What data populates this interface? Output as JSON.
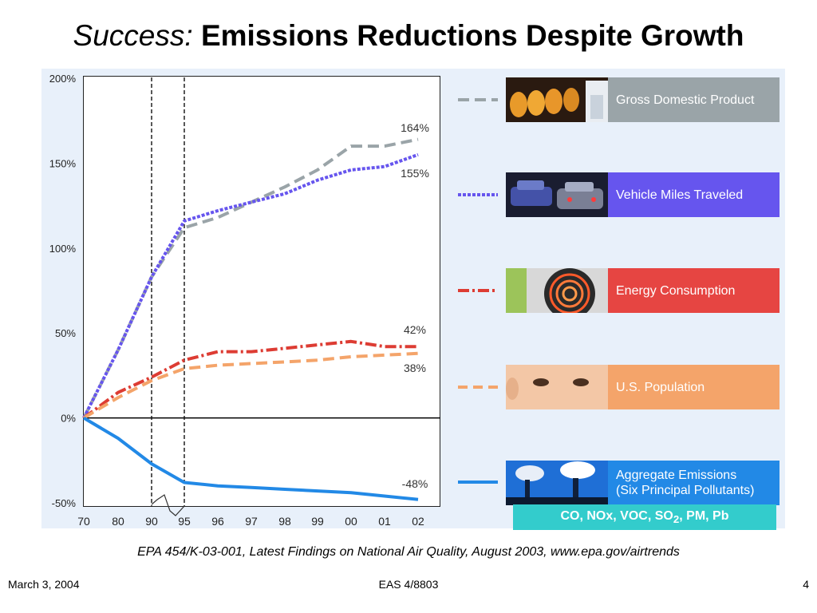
{
  "title": {
    "italic": "Success:",
    "bold": "Emissions Reductions Despite Growth"
  },
  "chart_data": {
    "type": "line",
    "x": [
      "70",
      "80",
      "90",
      "95",
      "96",
      "97",
      "98",
      "99",
      "00",
      "01",
      "02"
    ],
    "yticks": [
      "200%",
      "150%",
      "100%",
      "50%",
      "0%",
      "-50%"
    ],
    "ylim": [
      -50,
      200
    ],
    "reference_lines": [
      "90",
      "95"
    ],
    "series": [
      {
        "name": "Gross Domestic Product",
        "color": "#9aa4a8",
        "style": "dashed",
        "values": [
          0,
          40,
          83,
          112,
          118,
          127,
          136,
          146,
          160,
          160,
          164
        ],
        "end_label": "164%"
      },
      {
        "name": "Vehicle Miles Traveled",
        "color": "#6655ee",
        "style": "dotted",
        "values": [
          0,
          40,
          83,
          116,
          122,
          127,
          132,
          140,
          146,
          148,
          155
        ],
        "end_label": "155%"
      },
      {
        "name": "Energy Consumption",
        "color": "#dd3c33",
        "style": "dashdot",
        "values": [
          0,
          15,
          24,
          34,
          39,
          39,
          41,
          43,
          45,
          42,
          42
        ],
        "end_label": "42%"
      },
      {
        "name": "U.S. Population",
        "color": "#f4a46a",
        "style": "dashed",
        "values": [
          0,
          12,
          22,
          29,
          31,
          32,
          33,
          34,
          36,
          37,
          38
        ],
        "end_label": "38%"
      },
      {
        "name": "Aggregate Emissions\n(Six Principal Pollutants)",
        "color": "#2289e6",
        "style": "solid",
        "values": [
          0,
          -12,
          -27,
          -38,
          -40,
          -41,
          -42,
          -43,
          -44,
          -46,
          -48
        ],
        "end_label": "-48%"
      }
    ],
    "pollutants_note": "CO, NOx, VOC, SO2, PM, Pb"
  },
  "legend_colors": [
    "#9aa4a8",
    "#6655ee",
    "#e64542",
    "#f4a46a",
    "#2289e6"
  ],
  "source": "EPA 454/K-03-001, Latest Findings on National Air Quality, August 2003, www.epa.gov/airtrends",
  "footer": {
    "date": "March 3, 2004",
    "course": "EAS 4/8803",
    "page": "4"
  }
}
